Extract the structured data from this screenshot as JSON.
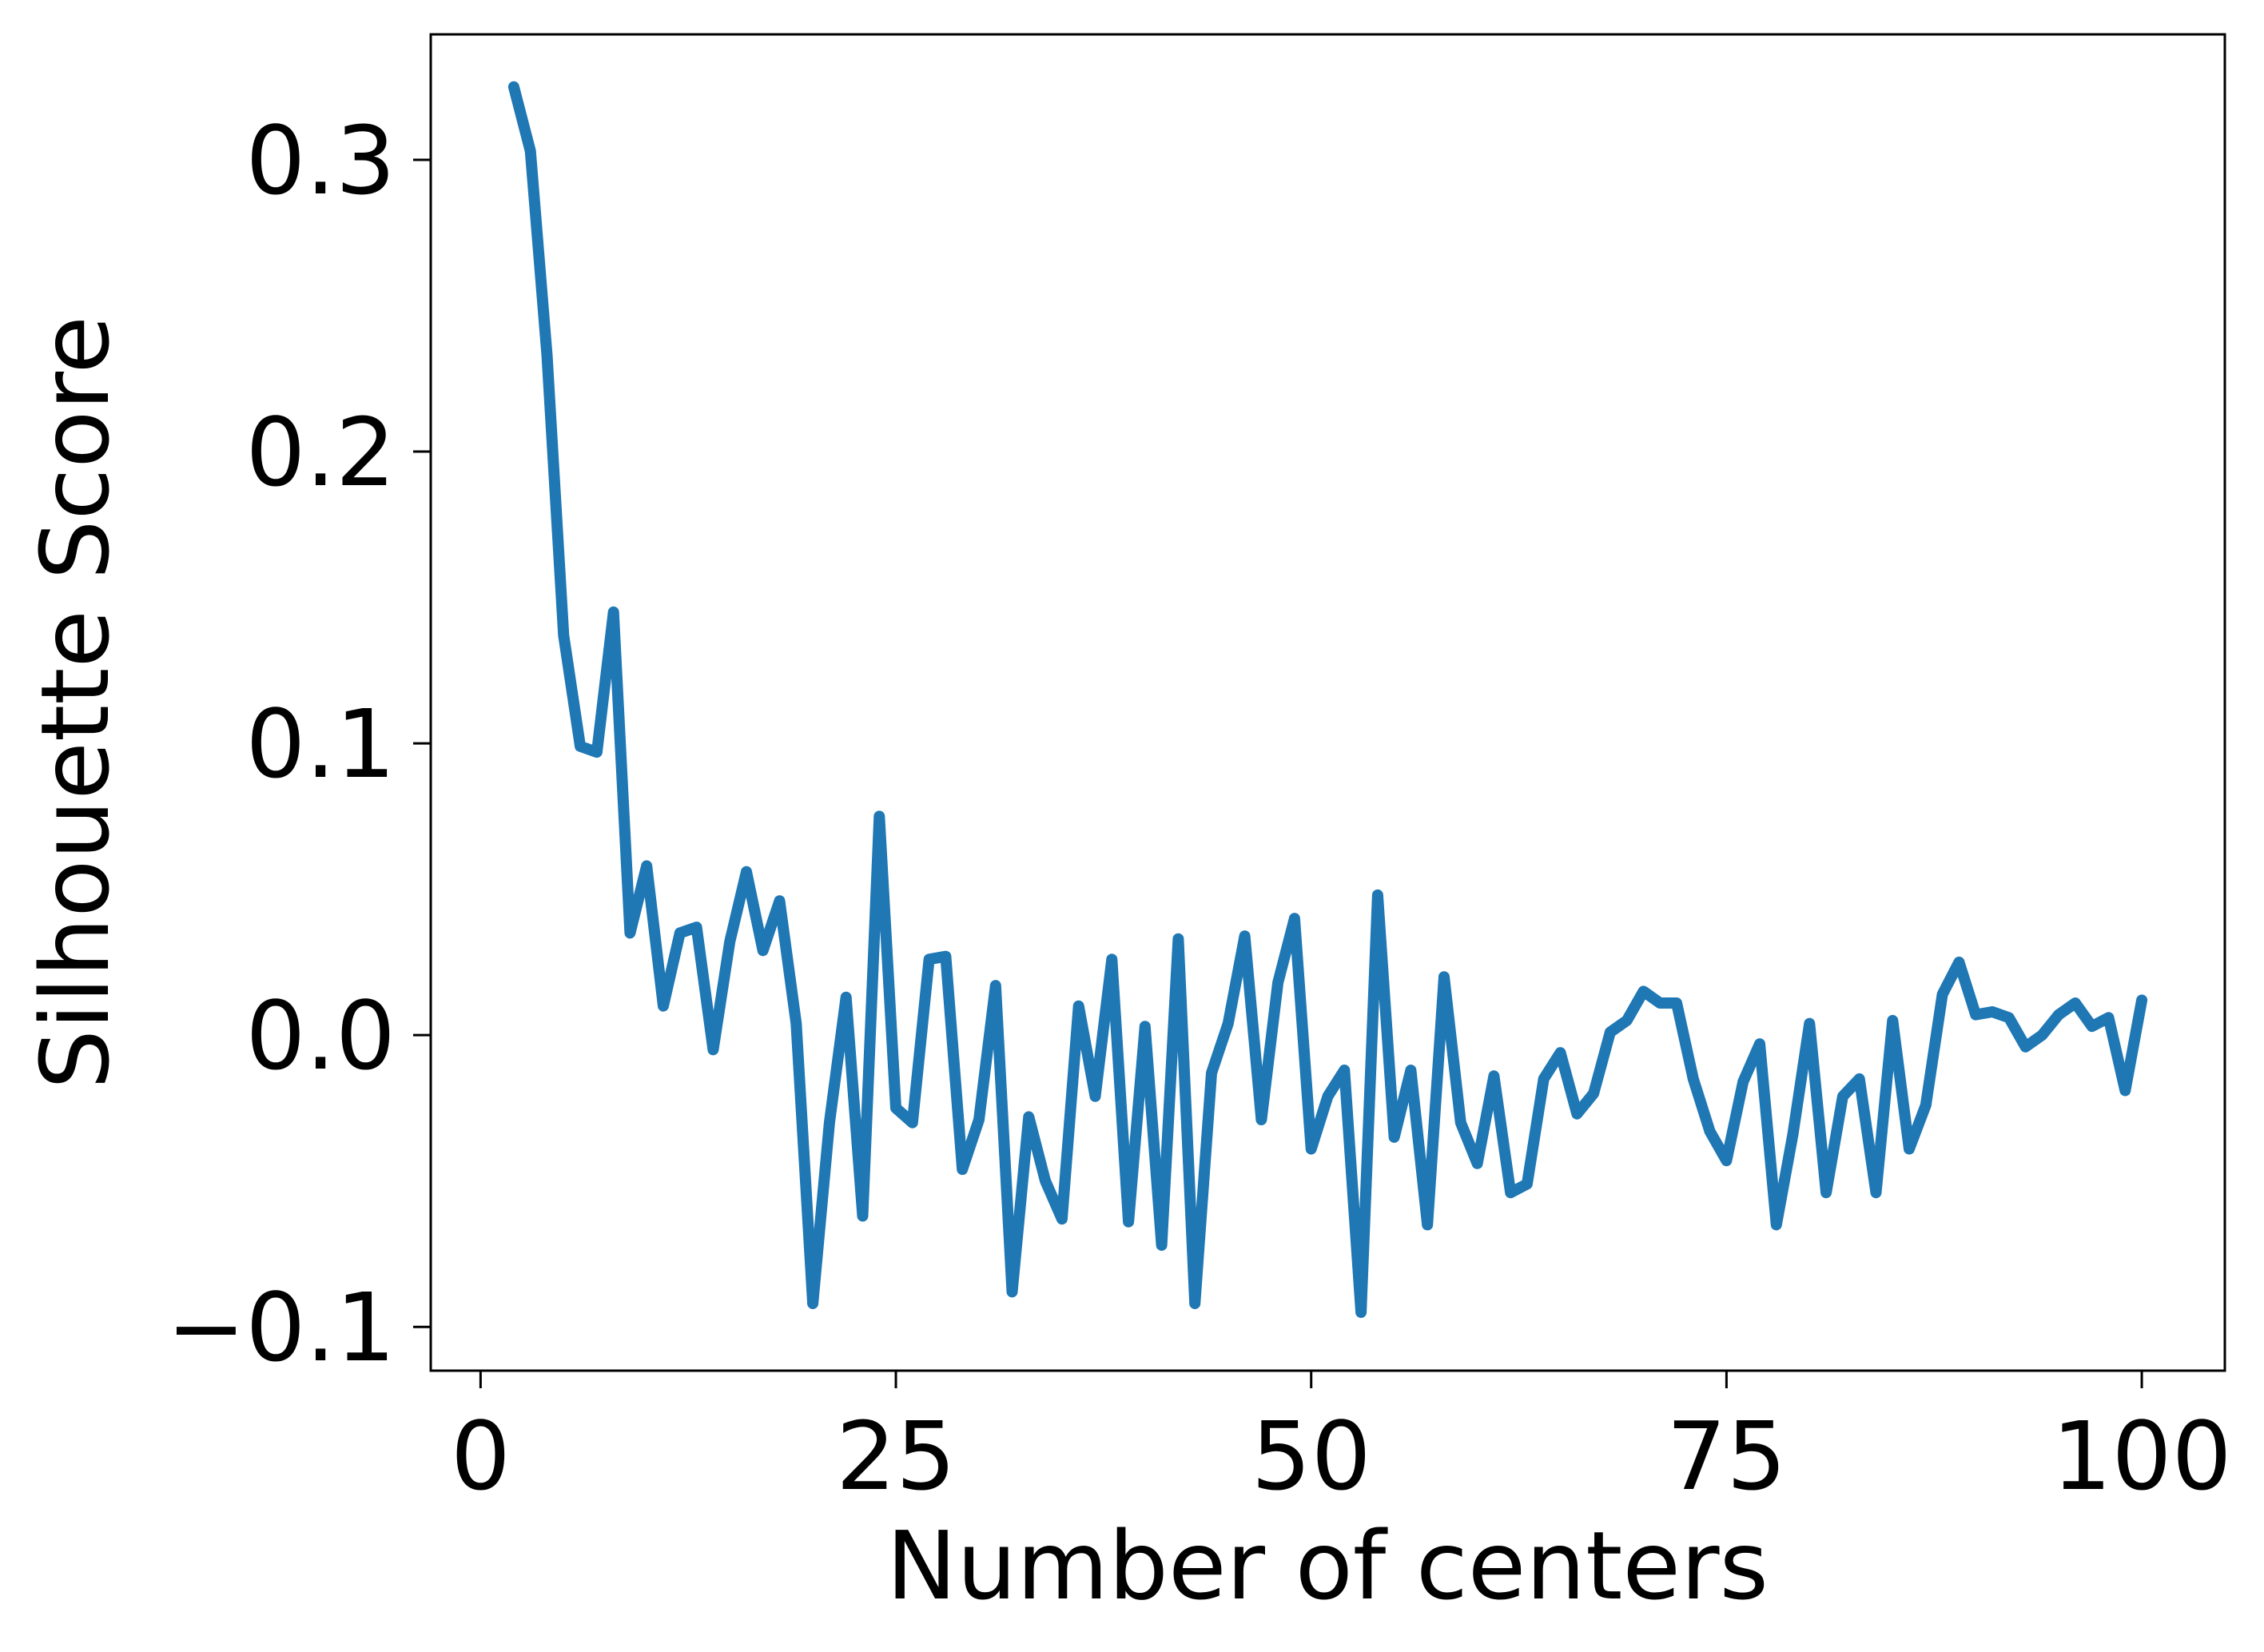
{
  "chart_data": {
    "type": "line",
    "title": "",
    "xlabel": "Number of centers",
    "ylabel": "Silhouette Score",
    "xlim": [
      -3,
      105
    ],
    "ylim": [
      -0.115,
      0.343
    ],
    "xticks": [
      0,
      25,
      50,
      75,
      100
    ],
    "xtick_labels": [
      "0",
      "25",
      "50",
      "75",
      "100"
    ],
    "yticks": [
      -0.1,
      0.0,
      0.1,
      0.2,
      0.3
    ],
    "ytick_labels": [
      "−0.1",
      "0.0",
      "0.1",
      "0.2",
      "0.3"
    ],
    "grid": false,
    "legend": "none",
    "color": "#1f77b4",
    "series": [
      {
        "x": [
          2,
          3,
          4,
          5,
          6,
          7,
          8,
          9,
          10,
          11,
          12,
          13,
          14,
          15,
          16,
          17,
          18,
          19,
          20,
          21,
          22,
          23,
          24,
          25,
          26,
          27,
          28,
          29,
          30,
          31,
          32,
          33,
          34,
          35,
          36,
          37,
          38,
          39,
          40,
          41,
          42,
          43,
          44,
          45,
          46,
          47,
          48,
          49,
          50,
          51,
          52,
          53,
          54,
          55,
          56,
          57,
          58,
          59,
          60,
          61,
          62,
          63,
          64,
          65,
          66,
          67,
          68,
          69,
          70,
          71,
          72,
          73,
          74,
          75,
          76,
          77,
          78,
          79,
          80,
          81,
          82,
          83,
          84,
          85,
          86,
          87,
          88,
          89,
          90,
          91,
          92,
          93,
          94,
          95,
          96,
          97,
          98,
          99,
          100
        ],
        "values": [
          0.325,
          0.303,
          0.233,
          0.137,
          0.099,
          0.097,
          0.145,
          0.035,
          0.058,
          0.01,
          0.035,
          0.037,
          -0.005,
          0.032,
          0.056,
          0.029,
          0.046,
          0.004,
          -0.092,
          -0.03,
          0.013,
          -0.062,
          0.075,
          -0.025,
          -0.03,
          0.026,
          0.027,
          -0.046,
          -0.029,
          0.017,
          -0.088,
          -0.028,
          -0.05,
          -0.063,
          0.01,
          -0.021,
          0.026,
          -0.064,
          0.003,
          -0.072,
          0.033,
          -0.092,
          -0.013,
          0.004,
          0.034,
          -0.029,
          0.018,
          0.04,
          -0.039,
          -0.021,
          -0.012,
          -0.095,
          0.048,
          -0.035,
          -0.012,
          -0.065,
          0.02,
          -0.03,
          -0.044,
          -0.014,
          -0.054,
          -0.051,
          -0.015,
          -0.006,
          -0.027,
          -0.02,
          0.001,
          0.005,
          0.015,
          0.011,
          0.011,
          -0.015,
          -0.033,
          -0.043,
          -0.016,
          -0.003,
          -0.065,
          -0.034,
          0.004,
          -0.054,
          -0.021,
          -0.015,
          -0.054,
          0.005,
          -0.039,
          -0.024,
          0.014,
          0.025,
          0.007,
          0.008,
          0.006,
          -0.004,
          0.0,
          0.007,
          0.011,
          0.003,
          0.006,
          -0.019,
          0.012
        ]
      }
    ]
  }
}
